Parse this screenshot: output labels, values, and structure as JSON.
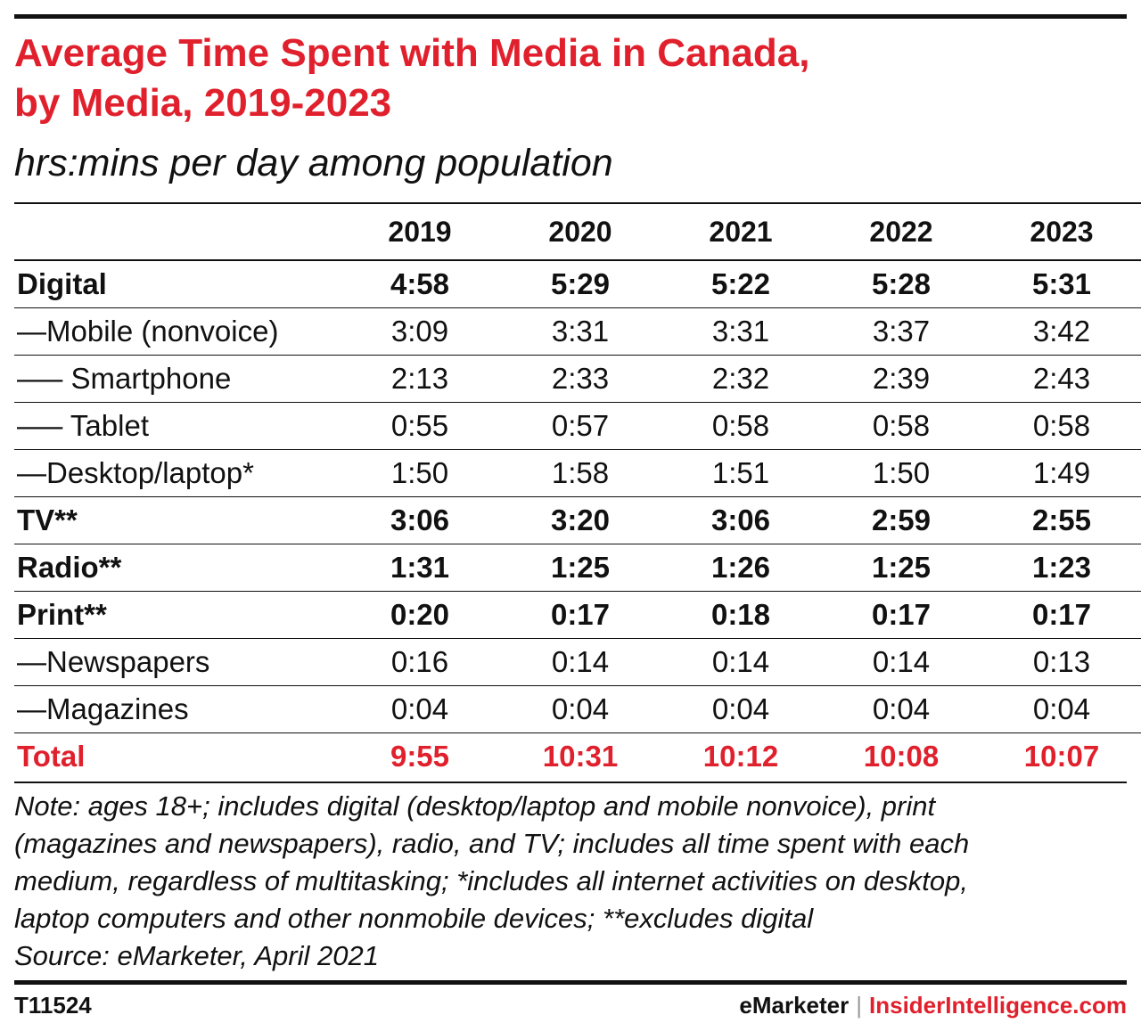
{
  "colors": {
    "accent": "#e0202c",
    "text": "#111111",
    "separator": "#999999"
  },
  "header": {
    "title_line1": "Average Time Spent with Media in Canada,",
    "title_line2": "by Media, 2019-2023",
    "subtitle": "hrs:mins per day among population"
  },
  "chart_data": {
    "type": "table",
    "title": "Average Time Spent with Media in Canada, by Media, 2019-2023",
    "subtitle": "hrs:mins per day among population",
    "columns": [
      "2019",
      "2020",
      "2021",
      "2022",
      "2023"
    ],
    "rows": [
      {
        "label": "Digital",
        "values": [
          "4:58",
          "5:29",
          "5:22",
          "5:28",
          "5:31"
        ],
        "style": "bold"
      },
      {
        "label": "—Mobile (nonvoice)",
        "values": [
          "3:09",
          "3:31",
          "3:31",
          "3:37",
          "3:42"
        ],
        "style": "normal"
      },
      {
        "label": "—– Smartphone",
        "values": [
          "2:13",
          "2:33",
          "2:32",
          "2:39",
          "2:43"
        ],
        "style": "normal"
      },
      {
        "label": "—– Tablet",
        "values": [
          "0:55",
          "0:57",
          "0:58",
          "0:58",
          "0:58"
        ],
        "style": "normal"
      },
      {
        "label": "—Desktop/laptop*",
        "values": [
          "1:50",
          "1:58",
          "1:51",
          "1:50",
          "1:49"
        ],
        "style": "normal"
      },
      {
        "label": "TV**",
        "values": [
          "3:06",
          "3:20",
          "3:06",
          "2:59",
          "2:55"
        ],
        "style": "bold"
      },
      {
        "label": "Radio**",
        "values": [
          "1:31",
          "1:25",
          "1:26",
          "1:25",
          "1:23"
        ],
        "style": "bold"
      },
      {
        "label": "Print**",
        "values": [
          "0:20",
          "0:17",
          "0:18",
          "0:17",
          "0:17"
        ],
        "style": "bold"
      },
      {
        "label": "—Newspapers",
        "values": [
          "0:16",
          "0:14",
          "0:14",
          "0:14",
          "0:13"
        ],
        "style": "normal"
      },
      {
        "label": "—Magazines",
        "values": [
          "0:04",
          "0:04",
          "0:04",
          "0:04",
          "0:04"
        ],
        "style": "normal"
      },
      {
        "label": "Total",
        "values": [
          "9:55",
          "10:31",
          "10:12",
          "10:08",
          "10:07"
        ],
        "style": "total"
      }
    ]
  },
  "note": {
    "line1": "Note: ages 18+; includes digital (desktop/laptop and mobile nonvoice), print",
    "line2": "(magazines and newspapers), radio, and TV; includes all time spent with each",
    "line3": "medium, regardless of multitasking; *includes all internet activities on desktop,",
    "line4": "laptop computers and other nonmobile devices; **excludes digital",
    "source": "Source: eMarketer, April 2021"
  },
  "footer": {
    "chart_id": "T11524",
    "brand": "eMarketer",
    "separator": "|",
    "brand2": "InsiderIntelligence.com"
  }
}
